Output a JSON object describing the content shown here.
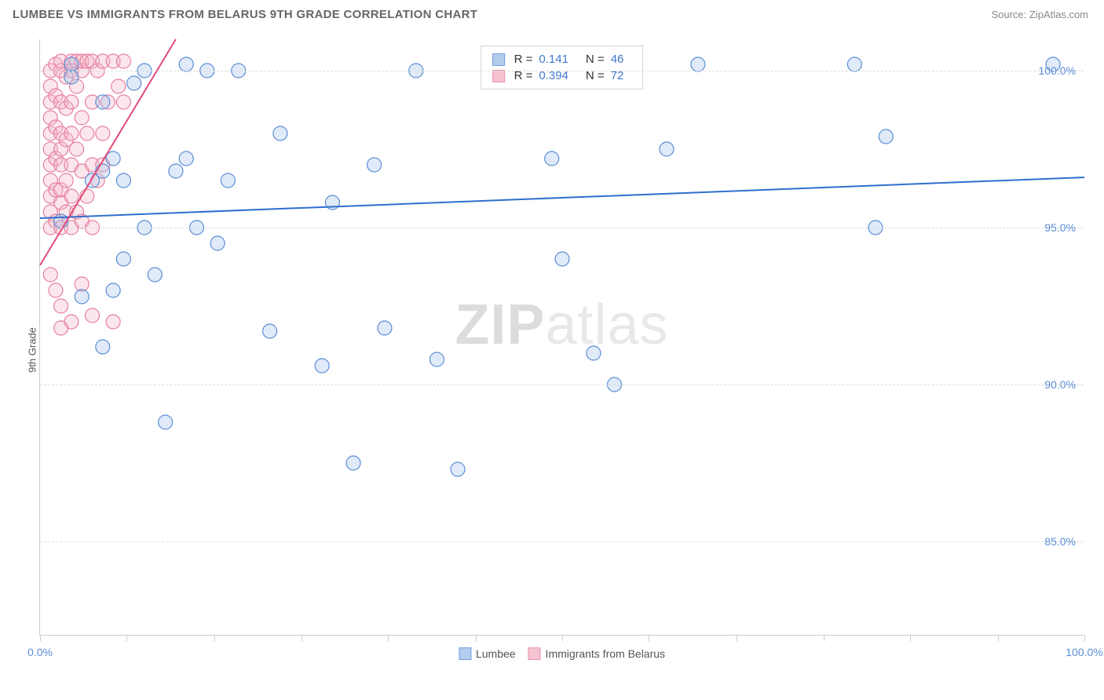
{
  "header": {
    "title": "LUMBEE VS IMMIGRANTS FROM BELARUS 9TH GRADE CORRELATION CHART",
    "source": "Source: ZipAtlas.com"
  },
  "chart": {
    "type": "scatter",
    "y_axis_label": "9th Grade",
    "xlim": [
      0,
      100
    ],
    "ylim": [
      82,
      101
    ],
    "x_ticks": [
      0,
      8.3,
      16.7,
      25,
      33.3,
      41.7,
      50,
      58.3,
      66.7,
      75,
      83.3,
      91.7,
      100
    ],
    "x_tick_labels": {
      "0": "0.0%",
      "100": "100.0%"
    },
    "y_ticks": [
      85,
      90,
      95,
      100
    ],
    "y_tick_labels": {
      "85": "85.0%",
      "90": "90.0%",
      "95": "95.0%",
      "100": "100.0%"
    },
    "background_color": "#ffffff",
    "grid_color": "#dddddd",
    "axis_color": "#cccccc",
    "tick_label_color": "#5b8dd6",
    "marker_radius": 9,
    "marker_fill_opacity": 0.35,
    "marker_stroke_width": 1.2,
    "watermark": {
      "text_bold": "ZIP",
      "text_light": "atlas"
    },
    "series": {
      "lumbee": {
        "label": "Lumbee",
        "fill": "#a7c4ea",
        "stroke": "#5b8dd6",
        "r_value": "0.141",
        "n_value": "46",
        "trend": {
          "x1": 0,
          "y1": 95.3,
          "x2": 100,
          "y2": 96.6,
          "color": "#2f6fd0",
          "width": 2
        },
        "points": [
          [
            2,
            95.2
          ],
          [
            3,
            99.8
          ],
          [
            4,
            92.8
          ],
          [
            5,
            96.5
          ],
          [
            6,
            96.8
          ],
          [
            6,
            91.2
          ],
          [
            7,
            93.0
          ],
          [
            7,
            97.2
          ],
          [
            8,
            96.5
          ],
          [
            9,
            99.6
          ],
          [
            10,
            95.0
          ],
          [
            10,
            100.0
          ],
          [
            11,
            93.5
          ],
          [
            12,
            88.8
          ],
          [
            13,
            96.8
          ],
          [
            14,
            97.2
          ],
          [
            15,
            95.0
          ],
          [
            16,
            100.0
          ],
          [
            17,
            94.5
          ],
          [
            18,
            96.5
          ],
          [
            19,
            100.0
          ],
          [
            22,
            91.7
          ],
          [
            23,
            98.0
          ],
          [
            27,
            90.6
          ],
          [
            28,
            95.8
          ],
          [
            30,
            87.5
          ],
          [
            32,
            97.0
          ],
          [
            33,
            91.8
          ],
          [
            36,
            100.0
          ],
          [
            38,
            90.8
          ],
          [
            40,
            87.3
          ],
          [
            49,
            97.2
          ],
          [
            53,
            91.0
          ],
          [
            54,
            100.2
          ],
          [
            55,
            90.0
          ],
          [
            60,
            97.5
          ],
          [
            63,
            100.2
          ],
          [
            78,
            100.2
          ],
          [
            80,
            95.0
          ],
          [
            81,
            97.9
          ],
          [
            97,
            100.2
          ],
          [
            50,
            94.0
          ],
          [
            6,
            99.0
          ],
          [
            8,
            94.0
          ],
          [
            14,
            100.2
          ],
          [
            3,
            100.2
          ]
        ]
      },
      "belarus": {
        "label": "Immigrants from Belarus",
        "fill": "#f4b8c8",
        "stroke": "#e77fa0",
        "r_value": "0.394",
        "n_value": "72",
        "trend": {
          "x1": 0,
          "y1": 93.8,
          "x2": 13,
          "y2": 101,
          "color": "#e24b78",
          "width": 2
        },
        "points": [
          [
            1,
            95.0
          ],
          [
            1,
            95.5
          ],
          [
            1,
            96.0
          ],
          [
            1,
            96.5
          ],
          [
            1,
            97.0
          ],
          [
            1,
            97.5
          ],
          [
            1,
            98.0
          ],
          [
            1,
            98.5
          ],
          [
            1,
            99.0
          ],
          [
            1,
            99.5
          ],
          [
            1,
            100.0
          ],
          [
            1.5,
            95.2
          ],
          [
            1.5,
            96.2
          ],
          [
            1.5,
            97.2
          ],
          [
            1.5,
            98.2
          ],
          [
            1.5,
            99.2
          ],
          [
            1.5,
            100.2
          ],
          [
            2,
            95.0
          ],
          [
            2,
            95.8
          ],
          [
            2,
            96.2
          ],
          [
            2,
            97.0
          ],
          [
            2,
            97.5
          ],
          [
            2,
            98.0
          ],
          [
            2,
            99.0
          ],
          [
            2,
            100.0
          ],
          [
            2,
            100.3
          ],
          [
            2.5,
            95.5
          ],
          [
            2.5,
            96.5
          ],
          [
            2.5,
            97.8
          ],
          [
            2.5,
            98.8
          ],
          [
            2.5,
            99.8
          ],
          [
            3,
            95.0
          ],
          [
            3,
            96.0
          ],
          [
            3,
            97.0
          ],
          [
            3,
            98.0
          ],
          [
            3,
            99.0
          ],
          [
            3,
            100.0
          ],
          [
            3,
            100.3
          ],
          [
            3.5,
            95.5
          ],
          [
            3.5,
            97.5
          ],
          [
            3.5,
            99.5
          ],
          [
            3.5,
            100.3
          ],
          [
            4,
            95.2
          ],
          [
            4,
            96.8
          ],
          [
            4,
            98.5
          ],
          [
            4,
            100.0
          ],
          [
            4,
            100.3
          ],
          [
            4.5,
            96.0
          ],
          [
            4.5,
            98.0
          ],
          [
            4.5,
            100.3
          ],
          [
            5,
            95.0
          ],
          [
            5,
            97.0
          ],
          [
            5,
            99.0
          ],
          [
            5,
            100.3
          ],
          [
            5.5,
            96.5
          ],
          [
            5.5,
            100.0
          ],
          [
            6,
            98.0
          ],
          [
            6,
            100.3
          ],
          [
            6.5,
            99.0
          ],
          [
            7,
            100.3
          ],
          [
            7.5,
            99.5
          ],
          [
            8,
            100.3
          ],
          [
            7,
            92.0
          ],
          [
            8,
            99.0
          ],
          [
            1,
            93.5
          ],
          [
            1.5,
            93.0
          ],
          [
            2,
            92.5
          ],
          [
            3,
            92.0
          ],
          [
            5,
            92.2
          ],
          [
            2,
            91.8
          ],
          [
            4,
            93.2
          ],
          [
            6,
            97.0
          ]
        ]
      }
    },
    "legend_top": {
      "r_label": "R  =",
      "n_label": "N  ="
    }
  }
}
